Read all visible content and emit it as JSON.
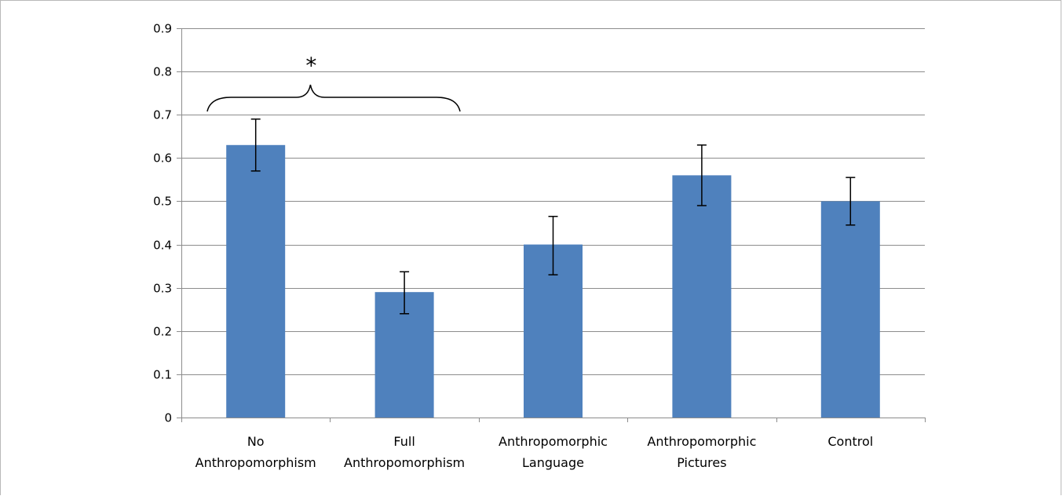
{
  "chart_data": {
    "type": "bar",
    "categories": [
      [
        "No",
        "Anthropomorphism"
      ],
      [
        "Full",
        "Anthropomorphism"
      ],
      [
        "Anthropomorphic",
        "Language"
      ],
      [
        "Anthropomorphic",
        "Pictures"
      ],
      [
        "Control"
      ]
    ],
    "values": [
      0.63,
      0.29,
      0.4,
      0.56,
      0.5
    ],
    "error_low": [
      0.57,
      0.24,
      0.33,
      0.49,
      0.445
    ],
    "error_high": [
      0.69,
      0.337,
      0.465,
      0.63,
      0.555
    ],
    "y_ticks": [
      "0",
      "0.1",
      "0.2",
      "0.3",
      "0.4",
      "0.5",
      "0.6",
      "0.7",
      "0.8",
      "0.9"
    ],
    "ylim": [
      0,
      0.9
    ],
    "grid": true,
    "legend": "none",
    "bar_color": "#4f81bd",
    "significance": {
      "from_category": 0,
      "to_category": 1,
      "label": "*"
    }
  }
}
